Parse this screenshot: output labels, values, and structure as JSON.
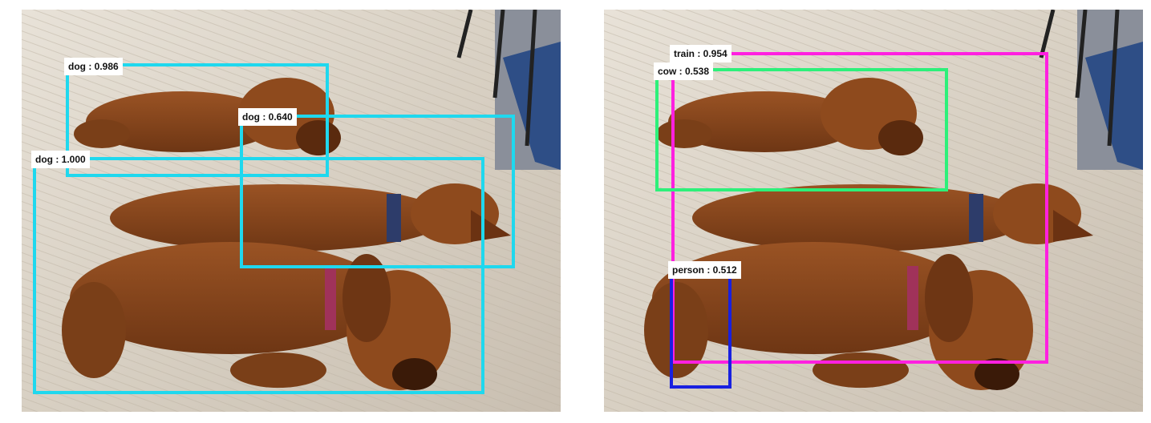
{
  "colors": {
    "dog": "#1fd8ee",
    "train": "#ff20e0",
    "cow": "#2df07a",
    "person": "#1820e0"
  },
  "panels": [
    {
      "detections": [
        {
          "label": "dog : 0.986",
          "color": "dog"
        },
        {
          "label": "dog : 0.640",
          "color": "dog"
        },
        {
          "label": "dog : 1.000",
          "color": "dog"
        }
      ]
    },
    {
      "detections": [
        {
          "label": "train : 0.954",
          "color": "train"
        },
        {
          "label": "cow : 0.538",
          "color": "cow"
        },
        {
          "label": "person : 0.512",
          "color": "person"
        }
      ]
    }
  ]
}
